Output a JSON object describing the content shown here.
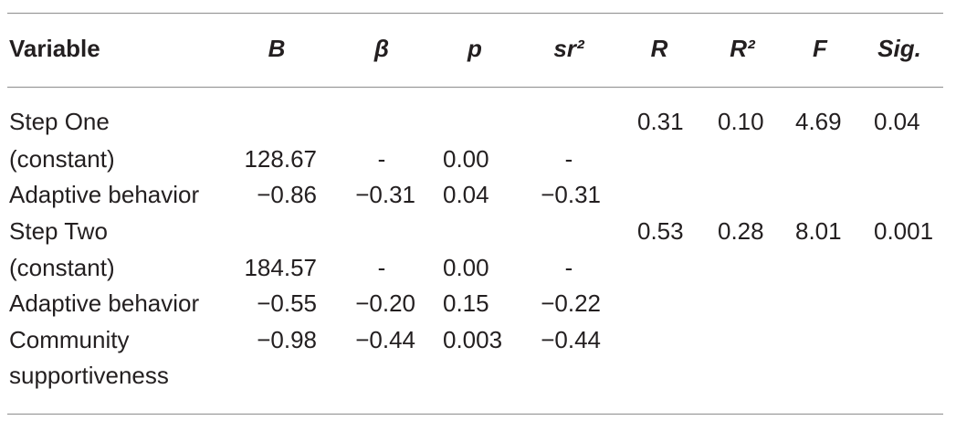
{
  "table": {
    "header": [
      "Variable",
      "B",
      "β",
      "p",
      "sr²",
      "R",
      "R²",
      "F",
      "Sig."
    ],
    "rows": [
      [
        "Step One",
        null,
        null,
        null,
        null,
        "0.31",
        "0.10",
        "4.69",
        "0.04"
      ],
      [
        "(constant)",
        "128.67",
        "-",
        "0.00",
        "-",
        null,
        null,
        null,
        null
      ],
      [
        "Adaptive behavior",
        "−0.86",
        "−0.31",
        "0.04",
        "−0.31",
        null,
        null,
        null,
        null
      ],
      [
        "Step Two",
        null,
        null,
        null,
        null,
        "0.53",
        "0.28",
        "8.01",
        "0.001"
      ],
      [
        "(constant)",
        "184.57",
        "-",
        "0.00",
        "-",
        null,
        null,
        null,
        null
      ],
      [
        "Adaptive behavior",
        "−0.55",
        "−0.20",
        "0.15",
        "−0.22",
        null,
        null,
        null,
        null
      ],
      [
        "Community",
        "−0.98",
        "−0.44",
        "0.003",
        "−0.44",
        null,
        null,
        null,
        null
      ],
      [
        "supportiveness",
        null,
        null,
        null,
        null,
        null,
        null,
        null,
        null
      ]
    ]
  }
}
